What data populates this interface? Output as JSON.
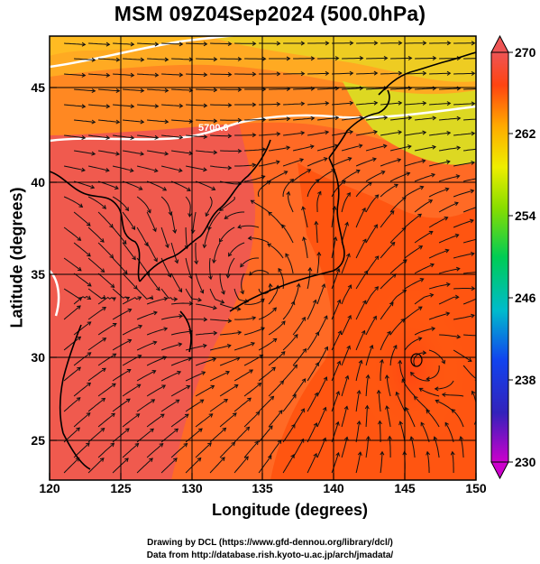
{
  "title": "MSM 09Z04Sep2024 (500.0hPa)",
  "axes": {
    "xlabel": "Longitude (degrees)",
    "ylabel": "Latitude  (degrees)",
    "xticks": [
      "120",
      "125",
      "130",
      "135",
      "140",
      "145",
      "150"
    ],
    "yticks": [
      "45",
      "40",
      "35",
      "30",
      "25"
    ]
  },
  "colorbar": {
    "ticks": [
      "270",
      "262",
      "254",
      "246",
      "238",
      "230"
    ],
    "range": [
      230,
      270
    ],
    "colors": [
      "#cc00cc",
      "#2222cc",
      "#00bbcc",
      "#00cc55",
      "#88dd00",
      "#eeee00",
      "#ff9900",
      "#ff3300",
      "#ee4444"
    ]
  },
  "contour_label": "5700.0",
  "credits": [
    "Drawing by DCL (https://www.gfd-dennou.org/library/dcl/)",
    "Data from http://database.rish.kyoto-u.ac.jp/arch/jmadata/"
  ]
}
